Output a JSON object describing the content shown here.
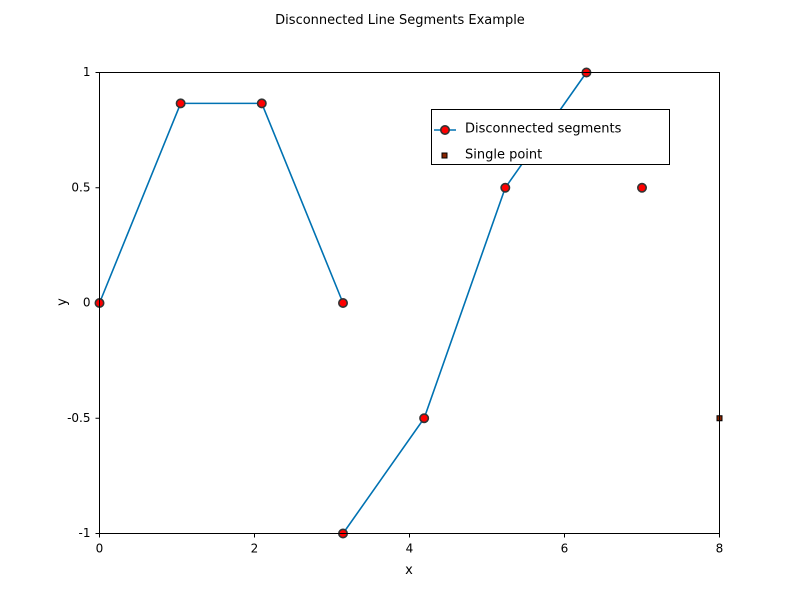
{
  "chart_data": {
    "type": "line",
    "title": "Disconnected Line Segments Example",
    "xlabel": "x",
    "ylabel": "y",
    "xlim": [
      0,
      8
    ],
    "ylim": [
      -1,
      1
    ],
    "xticks": [
      0,
      2,
      4,
      6,
      8
    ],
    "xtick_labels": [
      "0",
      "2",
      "4",
      "6",
      "8"
    ],
    "yticks": [
      -1,
      -0.5,
      0,
      0.5,
      1
    ],
    "ytick_labels": [
      "-1",
      "-0.5",
      "0",
      "0.5",
      "1"
    ],
    "grid": false,
    "legend_position": "upper-right",
    "series": [
      {
        "name": "Disconnected segments",
        "color": "#0072b2",
        "marker_face": "#ff0000",
        "marker_edge": "#333333",
        "segments": [
          [
            {
              "x": 0,
              "y": 0
            },
            {
              "x": 1.047,
              "y": 0.866
            },
            {
              "x": 2.094,
              "y": 0.866
            },
            {
              "x": 3.142,
              "y": 0
            }
          ],
          [
            {
              "x": 3.142,
              "y": -1
            },
            {
              "x": 4.189,
              "y": -0.5
            },
            {
              "x": 5.236,
              "y": 0.5
            },
            {
              "x": 6.283,
              "y": 1
            }
          ],
          [
            {
              "x": 7,
              "y": 0.5
            }
          ]
        ]
      },
      {
        "name": "Single point",
        "color": "#000000",
        "marker_face": "#8b2500",
        "points": [
          {
            "x": 8,
            "y": -0.5
          }
        ]
      }
    ]
  }
}
